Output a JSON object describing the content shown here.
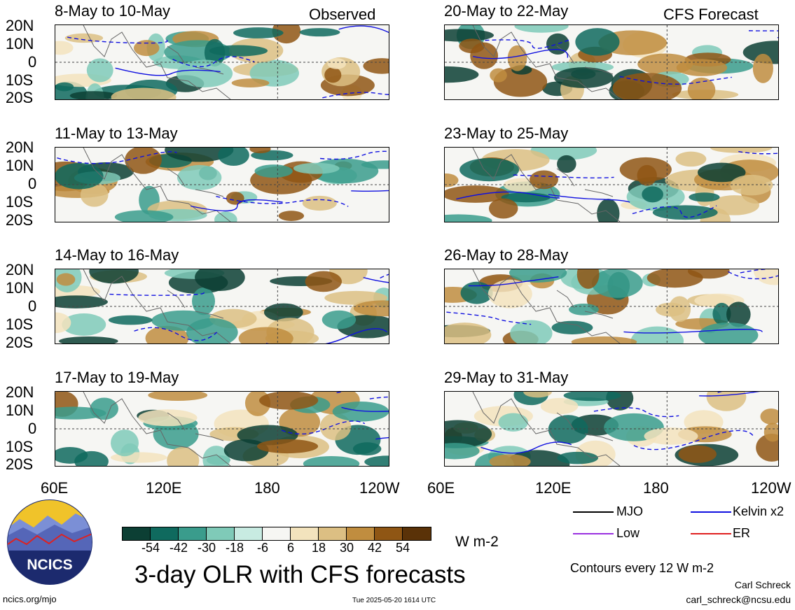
{
  "header": {
    "observed_label": "Observed",
    "forecast_label": "CFS Forecast"
  },
  "panels": {
    "observed": [
      "8-May to 10-May",
      "11-May to 13-May",
      "14-May to 16-May",
      "17-May to 19-May"
    ],
    "forecast": [
      "20-May to 22-May",
      "23-May to 25-May",
      "26-May to 28-May",
      "29-May to 31-May"
    ]
  },
  "axes": {
    "lat_labels": [
      "20N",
      "10N",
      "0",
      "10S",
      "20S"
    ],
    "lon_labels": [
      "60E",
      "120E",
      "180",
      "120W"
    ]
  },
  "colorbar": {
    "ticks": [
      "-54",
      "-42",
      "-30",
      "-18",
      "-6",
      "6",
      "18",
      "30",
      "42",
      "54"
    ],
    "colors": [
      "#0c3f34",
      "#0f6a5e",
      "#3a9c8c",
      "#7fcab8",
      "#c8ebe2",
      "#f6f6f3",
      "#f3e3bd",
      "#dcbf83",
      "#c08d3f",
      "#8f5614",
      "#5a3208"
    ],
    "units": "W m-2"
  },
  "title": "3-day OLR with CFS forecasts",
  "legend": {
    "items": [
      {
        "label": "MJO",
        "color": "#000000"
      },
      {
        "label": "Kelvin x2",
        "color": "#1010e0"
      },
      {
        "label": "Low",
        "color": "#9a30e0"
      },
      {
        "label": "ER",
        "color": "#e02020"
      }
    ],
    "note": "Contours every 12 W m-2"
  },
  "footer": {
    "site": "ncics.org/mjo",
    "timestamp": "Tue 2025-05-20 1614 UTC",
    "author": "Carl Schreck",
    "email": "carl_schreck@ncsu.edu"
  },
  "logo": {
    "text": "NCICS"
  }
}
